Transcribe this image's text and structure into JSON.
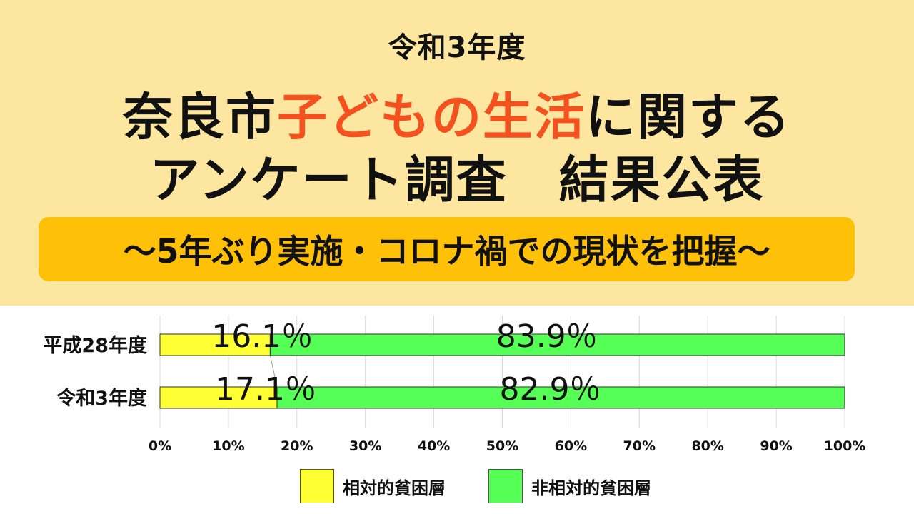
{
  "header": {
    "era": "令和3年度",
    "title_line1_part1": "奈良市",
    "title_line1_highlight": "子どもの生活",
    "title_line1_part2": "に関する",
    "title_line2": "アンケート調査　結果公表",
    "banner": "～5年ぶり実施・コロナ禍での現状を把握～",
    "highlight_color": "#f4511e",
    "banner_color": "#ffc107",
    "background_color": "#fde7a0"
  },
  "chart_data": {
    "type": "bar",
    "orientation": "horizontal",
    "stacked": true,
    "percent_stacked": true,
    "categories": [
      "平成28年度",
      "令和3年度"
    ],
    "series": [
      {
        "name": "相対的貧困層",
        "values": [
          16.1,
          17.1
        ],
        "labels": [
          "16.1％",
          "17.1％"
        ],
        "color": "#ffff33"
      },
      {
        "name": "非相対的貧困層",
        "values": [
          83.9,
          82.9
        ],
        "labels": [
          "83.9％",
          "82.9％"
        ],
        "color": "#55ff55"
      }
    ],
    "xlim": [
      0,
      100
    ],
    "xticks": [
      0,
      10,
      20,
      30,
      40,
      50,
      60,
      70,
      80,
      90,
      100
    ],
    "xtick_labels": [
      "0%",
      "10%",
      "20%",
      "30%",
      "40%",
      "50%",
      "60%",
      "70%",
      "80%",
      "90%",
      "100%"
    ],
    "grid": true,
    "series_lines": true,
    "legend_position": "bottom"
  }
}
